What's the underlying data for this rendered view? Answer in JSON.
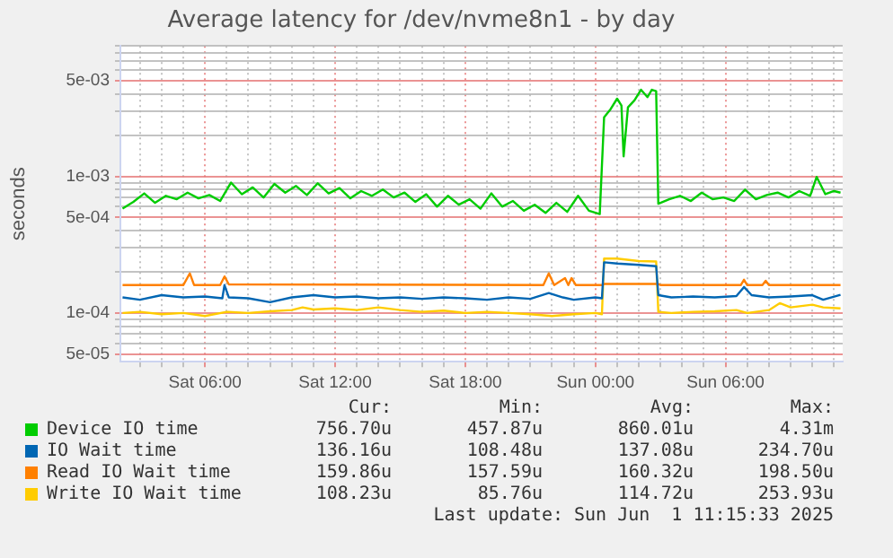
{
  "chart_data": {
    "type": "line",
    "title": "Average latency for /dev/nvme8n1 - by day",
    "ylabel": "seconds",
    "log": "y",
    "grid": true,
    "legend": "bottom",
    "marker": "none",
    "line_style": "solid",
    "xlim": [
      "2025-05-31T02:06",
      "2025-06-01T11:24"
    ],
    "xticks": [
      {
        "value": "2025-05-31T03:00",
        "label": null
      },
      {
        "value": "2025-05-31T04:00",
        "label": null
      },
      {
        "value": "2025-05-31T05:00",
        "label": null
      },
      {
        "value": "2025-05-31T06:00",
        "label": "Sat 06:00"
      },
      {
        "value": "2025-05-31T07:00",
        "label": null
      },
      {
        "value": "2025-05-31T08:00",
        "label": null
      },
      {
        "value": "2025-05-31T09:00",
        "label": null
      },
      {
        "value": "2025-05-31T10:00",
        "label": null
      },
      {
        "value": "2025-05-31T11:00",
        "label": null
      },
      {
        "value": "2025-05-31T12:00",
        "label": "Sat 12:00"
      },
      {
        "value": "2025-05-31T13:00",
        "label": null
      },
      {
        "value": "2025-05-31T14:00",
        "label": null
      },
      {
        "value": "2025-05-31T15:00",
        "label": null
      },
      {
        "value": "2025-05-31T16:00",
        "label": null
      },
      {
        "value": "2025-05-31T17:00",
        "label": null
      },
      {
        "value": "2025-05-31T18:00",
        "label": "Sat 18:00"
      },
      {
        "value": "2025-05-31T19:00",
        "label": null
      },
      {
        "value": "2025-05-31T20:00",
        "label": null
      },
      {
        "value": "2025-05-31T21:00",
        "label": null
      },
      {
        "value": "2025-05-31T22:00",
        "label": null
      },
      {
        "value": "2025-05-31T23:00",
        "label": null
      },
      {
        "value": "2025-06-01T00:00",
        "label": "Sun 00:00"
      },
      {
        "value": "2025-06-01T01:00",
        "label": null
      },
      {
        "value": "2025-06-01T02:00",
        "label": null
      },
      {
        "value": "2025-06-01T03:00",
        "label": null
      },
      {
        "value": "2025-06-01T04:00",
        "label": null
      },
      {
        "value": "2025-06-01T05:00",
        "label": null
      },
      {
        "value": "2025-06-01T06:00",
        "label": "Sun 06:00"
      },
      {
        "value": "2025-06-01T07:00",
        "label": null
      },
      {
        "value": "2025-06-01T08:00",
        "label": null
      },
      {
        "value": "2025-06-01T09:00",
        "label": null
      },
      {
        "value": "2025-06-01T10:00",
        "label": null
      },
      {
        "value": "2025-06-01T11:00",
        "label": null
      }
    ],
    "ylim": [
      4.4e-05,
      0.009
    ],
    "yticks": [
      {
        "value": 5e-05,
        "label": "5e-05"
      },
      {
        "value": 6e-05,
        "label": null
      },
      {
        "value": 7e-05,
        "label": null
      },
      {
        "value": 8e-05,
        "label": null
      },
      {
        "value": 9e-05,
        "label": null
      },
      {
        "value": 0.0001,
        "label": "1e-04"
      },
      {
        "value": 0.0002,
        "label": null
      },
      {
        "value": 0.0003,
        "label": null
      },
      {
        "value": 0.0004,
        "label": null
      },
      {
        "value": 0.0005,
        "label": "5e-04"
      },
      {
        "value": 0.0006,
        "label": null
      },
      {
        "value": 0.0007,
        "label": null
      },
      {
        "value": 0.0008,
        "label": null
      },
      {
        "value": 0.0009,
        "label": null
      },
      {
        "value": 0.001,
        "label": "1e-03"
      },
      {
        "value": 0.002,
        "label": null
      },
      {
        "value": 0.003,
        "label": null
      },
      {
        "value": 0.004,
        "label": null
      },
      {
        "value": 0.005,
        "label": "5e-03"
      },
      {
        "value": 0.006,
        "label": null
      },
      {
        "value": 0.007,
        "label": null
      },
      {
        "value": 0.008,
        "label": null
      },
      {
        "value": 0.009,
        "label": null
      }
    ],
    "series": [
      {
        "name": "Device IO time",
        "color": "#00cc00",
        "x": [
          "2025-05-31T02:12",
          "2025-05-31T02:42",
          "2025-05-31T03:12",
          "2025-05-31T03:42",
          "2025-05-31T04:12",
          "2025-05-31T04:42",
          "2025-05-31T05:12",
          "2025-05-31T05:42",
          "2025-05-31T06:12",
          "2025-05-31T06:42",
          "2025-05-31T07:12",
          "2025-05-31T07:42",
          "2025-05-31T08:12",
          "2025-05-31T08:42",
          "2025-05-31T09:12",
          "2025-05-31T09:42",
          "2025-05-31T10:12",
          "2025-05-31T10:42",
          "2025-05-31T11:12",
          "2025-05-31T11:42",
          "2025-05-31T12:12",
          "2025-05-31T12:42",
          "2025-05-31T13:12",
          "2025-05-31T13:42",
          "2025-05-31T14:12",
          "2025-05-31T14:42",
          "2025-05-31T15:12",
          "2025-05-31T15:42",
          "2025-05-31T16:12",
          "2025-05-31T16:42",
          "2025-05-31T17:12",
          "2025-05-31T17:42",
          "2025-05-31T18:12",
          "2025-05-31T18:42",
          "2025-05-31T19:12",
          "2025-05-31T19:42",
          "2025-05-31T20:12",
          "2025-05-31T20:42",
          "2025-05-31T21:12",
          "2025-05-31T21:42",
          "2025-05-31T22:12",
          "2025-05-31T22:42",
          "2025-05-31T23:12",
          "2025-05-31T23:42",
          "2025-06-01T00:12",
          "2025-06-01T00:24",
          "2025-06-01T00:42",
          "2025-06-01T01:00",
          "2025-06-01T01:12",
          "2025-06-01T01:18",
          "2025-06-01T01:30",
          "2025-06-01T01:48",
          "2025-06-01T02:06",
          "2025-06-01T02:24",
          "2025-06-01T02:36",
          "2025-06-01T02:48",
          "2025-06-01T02:54",
          "2025-06-01T03:24",
          "2025-06-01T03:54",
          "2025-06-01T04:24",
          "2025-06-01T04:54",
          "2025-06-01T05:24",
          "2025-06-01T05:54",
          "2025-06-01T06:24",
          "2025-06-01T06:54",
          "2025-06-01T07:24",
          "2025-06-01T07:54",
          "2025-06-01T08:24",
          "2025-06-01T08:54",
          "2025-06-01T09:24",
          "2025-06-01T09:54",
          "2025-06-01T10:12",
          "2025-06-01T10:36",
          "2025-06-01T11:00",
          "2025-06-01T11:18"
        ],
        "values": [
          0.00058,
          0.00065,
          0.00075,
          0.00064,
          0.00072,
          0.00068,
          0.00076,
          0.00069,
          0.00073,
          0.00066,
          0.0009,
          0.00074,
          0.00083,
          0.0007,
          0.00088,
          0.00076,
          0.00085,
          0.00073,
          0.00089,
          0.00075,
          0.00082,
          0.00069,
          0.00078,
          0.00072,
          0.0008,
          0.0007,
          0.00076,
          0.00065,
          0.00074,
          0.0006,
          0.00072,
          0.00062,
          0.00068,
          0.00058,
          0.00075,
          0.0006,
          0.00066,
          0.00056,
          0.00062,
          0.00054,
          0.00064,
          0.00055,
          0.00072,
          0.00056,
          0.00053,
          0.0027,
          0.0031,
          0.0037,
          0.0033,
          0.0014,
          0.0032,
          0.0036,
          0.0043,
          0.0038,
          0.0043,
          0.0042,
          0.00063,
          0.00068,
          0.00072,
          0.00066,
          0.00076,
          0.00068,
          0.0007,
          0.00066,
          0.0008,
          0.00068,
          0.00073,
          0.00076,
          0.0007,
          0.00078,
          0.00072,
          0.00099,
          0.00074,
          0.00078,
          0.00076
        ]
      },
      {
        "name": "IO Wait time",
        "color": "#0066b3",
        "x": [
          "2025-05-31T02:12",
          "2025-05-31T03:00",
          "2025-05-31T04:00",
          "2025-05-31T05:00",
          "2025-05-31T06:00",
          "2025-05-31T06:48",
          "2025-05-31T06:54",
          "2025-05-31T07:06",
          "2025-05-31T08:00",
          "2025-05-31T09:00",
          "2025-05-31T10:00",
          "2025-05-31T11:00",
          "2025-05-31T12:00",
          "2025-05-31T13:00",
          "2025-05-31T14:00",
          "2025-05-31T15:00",
          "2025-05-31T16:00",
          "2025-05-31T17:00",
          "2025-05-31T18:00",
          "2025-05-31T19:00",
          "2025-05-31T20:00",
          "2025-05-31T21:00",
          "2025-05-31T21:51",
          "2025-05-31T22:30",
          "2025-05-31T23:00",
          "2025-06-01T00:00",
          "2025-06-01T00:18",
          "2025-06-01T00:24",
          "2025-06-01T01:00",
          "2025-06-01T02:00",
          "2025-06-01T02:48",
          "2025-06-01T02:54",
          "2025-06-01T03:30",
          "2025-06-01T04:30",
          "2025-06-01T05:30",
          "2025-06-01T06:30",
          "2025-06-01T06:51",
          "2025-06-01T07:12",
          "2025-06-01T08:00",
          "2025-06-01T09:00",
          "2025-06-01T10:00",
          "2025-06-01T10:30",
          "2025-06-01T11:18"
        ],
        "values": [
          0.00013,
          0.000125,
          0.000135,
          0.00013,
          0.000132,
          0.000128,
          0.00016,
          0.00013,
          0.000128,
          0.00012,
          0.00013,
          0.000135,
          0.00013,
          0.000132,
          0.000128,
          0.00013,
          0.000127,
          0.00013,
          0.000128,
          0.000125,
          0.00013,
          0.000127,
          0.00014,
          0.00013,
          0.000125,
          0.00013,
          0.000128,
          0.000235,
          0.00023,
          0.000225,
          0.00022,
          0.000135,
          0.00013,
          0.000132,
          0.00013,
          0.000133,
          0.000155,
          0.000135,
          0.00013,
          0.000132,
          0.000135,
          0.000125,
          0.000136
        ]
      },
      {
        "name": "Read IO Wait time",
        "color": "#ff8000",
        "x": [
          "2025-05-31T02:12",
          "2025-05-31T05:00",
          "2025-05-31T05:18",
          "2025-05-31T05:30",
          "2025-05-31T06:42",
          "2025-05-31T06:54",
          "2025-05-31T07:06",
          "2025-05-31T21:36",
          "2025-05-31T21:51",
          "2025-05-31T22:06",
          "2025-05-31T22:36",
          "2025-05-31T22:45",
          "2025-05-31T22:54",
          "2025-05-31T23:06",
          "2025-06-01T00:18",
          "2025-06-01T00:24",
          "2025-06-01T02:54",
          "2025-06-01T03:00",
          "2025-06-01T06:42",
          "2025-06-01T06:51",
          "2025-06-01T07:00",
          "2025-06-01T07:42",
          "2025-06-01T07:51",
          "2025-06-01T08:00",
          "2025-06-01T11:18"
        ],
        "values": [
          0.00016,
          0.00016,
          0.000195,
          0.00016,
          0.00016,
          0.000185,
          0.000162,
          0.00016,
          0.000195,
          0.00016,
          0.00018,
          0.00016,
          0.00018,
          0.00016,
          0.00016,
          0.000163,
          0.000163,
          0.00016,
          0.00016,
          0.000175,
          0.00016,
          0.00016,
          0.000172,
          0.00016,
          0.00016
        ]
      },
      {
        "name": "Write IO Wait time",
        "color": "#ffcc00",
        "x": [
          "2025-05-31T02:12",
          "2025-05-31T03:00",
          "2025-05-31T04:00",
          "2025-05-31T05:00",
          "2025-05-31T06:00",
          "2025-05-31T07:00",
          "2025-05-31T08:00",
          "2025-05-31T09:00",
          "2025-05-31T10:00",
          "2025-05-31T10:30",
          "2025-05-31T11:00",
          "2025-05-31T12:00",
          "2025-05-31T13:00",
          "2025-05-31T14:00",
          "2025-05-31T15:00",
          "2025-05-31T16:00",
          "2025-05-31T17:00",
          "2025-05-31T18:00",
          "2025-05-31T19:00",
          "2025-05-31T20:00",
          "2025-05-31T21:00",
          "2025-05-31T22:00",
          "2025-05-31T23:00",
          "2025-06-01T00:00",
          "2025-06-01T00:18",
          "2025-06-01T00:24",
          "2025-06-01T01:00",
          "2025-06-01T02:00",
          "2025-06-01T02:48",
          "2025-06-01T02:54",
          "2025-06-01T03:30",
          "2025-06-01T04:30",
          "2025-06-01T05:30",
          "2025-06-01T06:30",
          "2025-06-01T07:00",
          "2025-06-01T08:00",
          "2025-06-01T08:30",
          "2025-06-01T09:00",
          "2025-06-01T10:00",
          "2025-06-01T10:30",
          "2025-06-01T11:18"
        ],
        "values": [
          0.0001,
          0.000102,
          9.8e-05,
          0.0001,
          9.5e-05,
          0.000102,
          0.0001,
          0.000103,
          0.000105,
          0.00011,
          0.000106,
          0.000108,
          0.000105,
          0.00011,
          0.000105,
          0.000102,
          0.000104,
          0.0001,
          0.000102,
          0.0001,
          9.8e-05,
          9.5e-05,
          9.8e-05,
          0.0001,
          9.8e-05,
          0.00025,
          0.00025,
          0.00024,
          0.000238,
          0.000102,
          0.0001,
          0.000102,
          0.000103,
          0.000105,
          0.0001,
          0.000105,
          0.000118,
          0.00011,
          0.000115,
          0.00011,
          0.000108
        ]
      }
    ],
    "annotations": [
      "Cur:",
      "Min:",
      "Avg:",
      "Max:",
      "756.70u",
      "457.87u",
      "860.01u",
      "4.31m",
      "136.16u",
      "108.48u",
      "137.08u",
      "234.70u",
      "159.86u",
      "157.59u",
      "160.32u",
      "198.50u",
      "108.23u",
      "85.76u",
      "114.72u",
      "253.93u",
      "Last update: Sun Jun  1 11:15:33 2025"
    ]
  }
}
